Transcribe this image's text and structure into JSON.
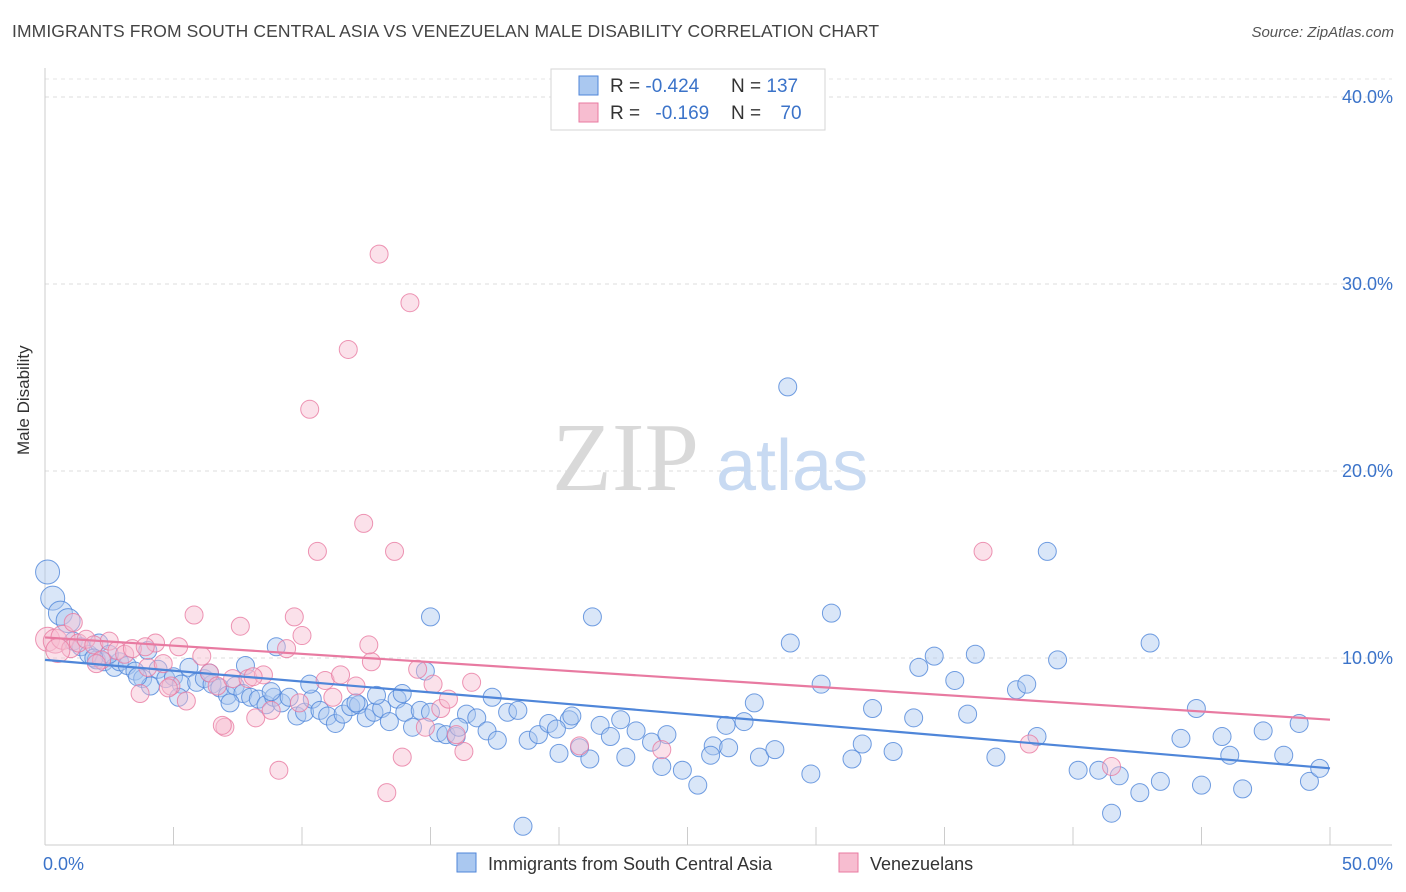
{
  "title": "IMMIGRANTS FROM SOUTH CENTRAL ASIA VS VENEZUELAN MALE DISABILITY CORRELATION CHART",
  "source": "Source: ZipAtlas.com",
  "watermark": {
    "zip": "ZIP",
    "atlas": "atlas"
  },
  "legend_box": {
    "row1": {
      "r_label": "R = ",
      "r_value": "-0.424",
      "n_label": "N = ",
      "n_value": "137"
    },
    "row2": {
      "r_label": "R = ",
      "r_value": "-0.169",
      "n_label": "N = ",
      "n_value": "70"
    }
  },
  "colors": {
    "blue": "#4f86d9",
    "blue_fill": "#aac8f0",
    "pink": "#e87aa1",
    "pink_fill": "#f7bdd0",
    "accent_text": "#3b73c9"
  },
  "chart_data": {
    "type": "scatter",
    "title": "IMMIGRANTS FROM SOUTH CENTRAL ASIA VS VENEZUELAN MALE DISABILITY CORRELATION CHART",
    "xlabel": "",
    "ylabel": "Male Disability",
    "xlim": [
      0,
      50
    ],
    "ylim": [
      0,
      40
    ],
    "x_ticks": [
      "0.0%",
      "50.0%"
    ],
    "y_ticks": [
      "10.0%",
      "20.0%",
      "30.0%",
      "40.0%"
    ],
    "grid": "horizontal dashed",
    "legend_position": "bottom",
    "series": [
      {
        "name": "Immigrants from South Central Asia",
        "color": "#4f86d9",
        "r": -0.424,
        "n": 137,
        "trend": {
          "x": [
            0,
            50
          ],
          "y": [
            9.9,
            4.1
          ]
        },
        "points": [
          [
            0.1,
            14.6
          ],
          [
            0.3,
            13.2
          ],
          [
            0.6,
            12.4
          ],
          [
            0.9,
            12.0
          ],
          [
            1.1,
            10.9
          ],
          [
            1.4,
            10.6
          ],
          [
            1.7,
            10.2
          ],
          [
            2.0,
            9.9
          ],
          [
            2.3,
            9.8
          ],
          [
            2.7,
            9.5
          ],
          [
            2.9,
            9.8
          ],
          [
            3.2,
            9.6
          ],
          [
            3.5,
            9.3
          ],
          [
            3.8,
            8.9
          ],
          [
            4.1,
            8.5
          ],
          [
            4.4,
            9.4
          ],
          [
            4.7,
            8.9
          ],
          [
            5.0,
            9.0
          ],
          [
            5.3,
            8.6
          ],
          [
            5.6,
            9.5
          ],
          [
            5.9,
            8.7
          ],
          [
            6.2,
            8.9
          ],
          [
            6.5,
            8.6
          ],
          [
            6.8,
            8.4
          ],
          [
            7.1,
            8.0
          ],
          [
            7.4,
            8.5
          ],
          [
            7.7,
            8.1
          ],
          [
            8.0,
            7.9
          ],
          [
            8.3,
            7.8
          ],
          [
            8.6,
            7.5
          ],
          [
            8.9,
            7.9
          ],
          [
            9.2,
            7.6
          ],
          [
            9.5,
            7.9
          ],
          [
            9.8,
            6.9
          ],
          [
            10.1,
            7.1
          ],
          [
            10.4,
            7.8
          ],
          [
            10.7,
            7.2
          ],
          [
            11.0,
            6.9
          ],
          [
            11.3,
            6.5
          ],
          [
            11.6,
            7.0
          ],
          [
            11.9,
            7.4
          ],
          [
            12.2,
            7.5
          ],
          [
            12.5,
            6.8
          ],
          [
            12.8,
            7.1
          ],
          [
            13.1,
            7.3
          ],
          [
            13.4,
            6.6
          ],
          [
            13.7,
            7.8
          ],
          [
            14.0,
            7.1
          ],
          [
            14.3,
            6.3
          ],
          [
            14.6,
            7.2
          ],
          [
            15.0,
            7.1
          ],
          [
            15.3,
            6.0
          ],
          [
            15.6,
            5.9
          ],
          [
            16.0,
            5.8
          ],
          [
            16.4,
            7.0
          ],
          [
            16.8,
            6.8
          ],
          [
            17.2,
            6.1
          ],
          [
            17.6,
            5.6
          ],
          [
            18.0,
            7.1
          ],
          [
            18.4,
            7.2
          ],
          [
            18.8,
            5.6
          ],
          [
            19.2,
            5.9
          ],
          [
            19.6,
            6.5
          ],
          [
            20.0,
            4.9
          ],
          [
            20.4,
            6.7
          ],
          [
            20.8,
            5.2
          ],
          [
            21.2,
            4.6
          ],
          [
            21.6,
            6.4
          ],
          [
            22.0,
            5.8
          ],
          [
            22.4,
            6.7
          ],
          [
            23.0,
            6.1
          ],
          [
            23.6,
            5.5
          ],
          [
            24.2,
            5.9
          ],
          [
            24.8,
            4.0
          ],
          [
            25.4,
            3.2
          ],
          [
            26.0,
            5.3
          ],
          [
            26.6,
            5.2
          ],
          [
            27.2,
            6.6
          ],
          [
            27.8,
            4.7
          ],
          [
            28.4,
            5.1
          ],
          [
            29.0,
            10.8
          ],
          [
            29.8,
            3.8
          ],
          [
            30.6,
            12.4
          ],
          [
            31.4,
            4.6
          ],
          [
            32.2,
            7.3
          ],
          [
            33.0,
            5.0
          ],
          [
            33.8,
            6.8
          ],
          [
            34.6,
            10.1
          ],
          [
            35.4,
            8.8
          ],
          [
            36.2,
            10.2
          ],
          [
            37.0,
            4.7
          ],
          [
            37.8,
            8.3
          ],
          [
            38.6,
            5.8
          ],
          [
            39.4,
            9.9
          ],
          [
            40.2,
            4.0
          ],
          [
            41.0,
            4.0
          ],
          [
            41.8,
            3.7
          ],
          [
            42.6,
            2.8
          ],
          [
            43.4,
            3.4
          ],
          [
            44.2,
            5.7
          ],
          [
            45.0,
            3.2
          ],
          [
            45.8,
            5.8
          ],
          [
            46.6,
            3.0
          ],
          [
            47.4,
            6.1
          ],
          [
            48.2,
            4.8
          ],
          [
            48.8,
            6.5
          ],
          [
            49.2,
            3.4
          ],
          [
            2.1,
            10.8
          ],
          [
            3.6,
            9.0
          ],
          [
            6.4,
            9.2
          ],
          [
            8.8,
            8.2
          ],
          [
            12.9,
            8.0
          ],
          [
            16.1,
            6.3
          ],
          [
            20.5,
            6.9
          ],
          [
            24.0,
            4.2
          ],
          [
            28.9,
            24.5
          ],
          [
            26.5,
            6.4
          ],
          [
            30.2,
            8.6
          ],
          [
            34.0,
            9.5
          ],
          [
            39.0,
            15.7
          ],
          [
            15.0,
            12.2
          ],
          [
            21.3,
            12.2
          ],
          [
            18.6,
            1.0
          ],
          [
            41.5,
            1.7
          ],
          [
            12.1,
            7.6
          ],
          [
            9.0,
            10.6
          ],
          [
            2.5,
            10.2
          ],
          [
            5.2,
            7.9
          ],
          [
            7.8,
            9.6
          ],
          [
            10.3,
            8.6
          ],
          [
            13.9,
            8.1
          ],
          [
            17.4,
            7.9
          ],
          [
            19.9,
            6.2
          ],
          [
            22.6,
            4.7
          ],
          [
            25.9,
            4.8
          ],
          [
            27.6,
            7.6
          ],
          [
            31.8,
            5.4
          ],
          [
            35.9,
            7.0
          ],
          [
            38.2,
            8.6
          ],
          [
            43.0,
            10.8
          ],
          [
            46.1,
            4.8
          ],
          [
            49.6,
            4.1
          ],
          [
            44.8,
            7.3
          ],
          [
            14.8,
            9.3
          ],
          [
            7.2,
            7.6
          ],
          [
            4.0,
            10.4
          ],
          [
            1.9,
            10.0
          ]
        ]
      },
      {
        "name": "Venezuelans",
        "color": "#e87aa1",
        "r": -0.169,
        "n": 70,
        "trend": {
          "x": [
            0,
            50
          ],
          "y": [
            11.1,
            6.7
          ]
        },
        "points": [
          [
            0.1,
            11.0
          ],
          [
            0.4,
            10.9
          ],
          [
            0.7,
            11.1
          ],
          [
            1.0,
            10.5
          ],
          [
            1.3,
            10.8
          ],
          [
            1.6,
            11.0
          ],
          [
            1.9,
            10.7
          ],
          [
            2.2,
            9.9
          ],
          [
            2.5,
            10.9
          ],
          [
            2.8,
            10.4
          ],
          [
            3.1,
            10.2
          ],
          [
            3.4,
            10.5
          ],
          [
            3.7,
            8.1
          ],
          [
            4.0,
            9.5
          ],
          [
            4.3,
            10.8
          ],
          [
            4.6,
            9.7
          ],
          [
            4.9,
            8.5
          ],
          [
            5.2,
            10.6
          ],
          [
            5.5,
            7.7
          ],
          [
            5.8,
            12.3
          ],
          [
            6.1,
            10.1
          ],
          [
            6.4,
            9.2
          ],
          [
            6.7,
            8.5
          ],
          [
            7.0,
            6.3
          ],
          [
            7.3,
            8.9
          ],
          [
            7.6,
            11.7
          ],
          [
            7.9,
            8.9
          ],
          [
            8.2,
            6.8
          ],
          [
            8.5,
            9.1
          ],
          [
            8.8,
            7.2
          ],
          [
            9.1,
            4.0
          ],
          [
            9.4,
            10.5
          ],
          [
            9.7,
            12.2
          ],
          [
            10.0,
            11.2
          ],
          [
            10.3,
            23.3
          ],
          [
            10.6,
            15.7
          ],
          [
            10.9,
            8.8
          ],
          [
            11.2,
            7.9
          ],
          [
            11.5,
            9.1
          ],
          [
            11.8,
            26.5
          ],
          [
            12.1,
            8.5
          ],
          [
            12.4,
            17.2
          ],
          [
            12.7,
            9.8
          ],
          [
            13.0,
            31.6
          ],
          [
            13.3,
            2.8
          ],
          [
            13.6,
            15.7
          ],
          [
            13.9,
            4.7
          ],
          [
            14.2,
            29.0
          ],
          [
            14.5,
            9.4
          ],
          [
            14.8,
            6.3
          ],
          [
            15.1,
            8.6
          ],
          [
            15.4,
            7.3
          ],
          [
            15.7,
            7.8
          ],
          [
            16.0,
            5.9
          ],
          [
            16.3,
            5.0
          ],
          [
            16.6,
            8.7
          ],
          [
            3.9,
            10.6
          ],
          [
            1.1,
            11.9
          ],
          [
            0.5,
            10.4
          ],
          [
            2.0,
            9.7
          ],
          [
            4.8,
            8.4
          ],
          [
            6.9,
            6.4
          ],
          [
            8.1,
            9.0
          ],
          [
            9.9,
            7.6
          ],
          [
            12.6,
            10.7
          ],
          [
            20.8,
            5.3
          ],
          [
            24.0,
            5.1
          ],
          [
            36.5,
            15.7
          ],
          [
            38.3,
            5.4
          ],
          [
            41.5,
            4.2
          ]
        ]
      }
    ]
  },
  "legend": {
    "items": [
      "Immigrants from South Central Asia",
      "Venezuelans"
    ]
  }
}
